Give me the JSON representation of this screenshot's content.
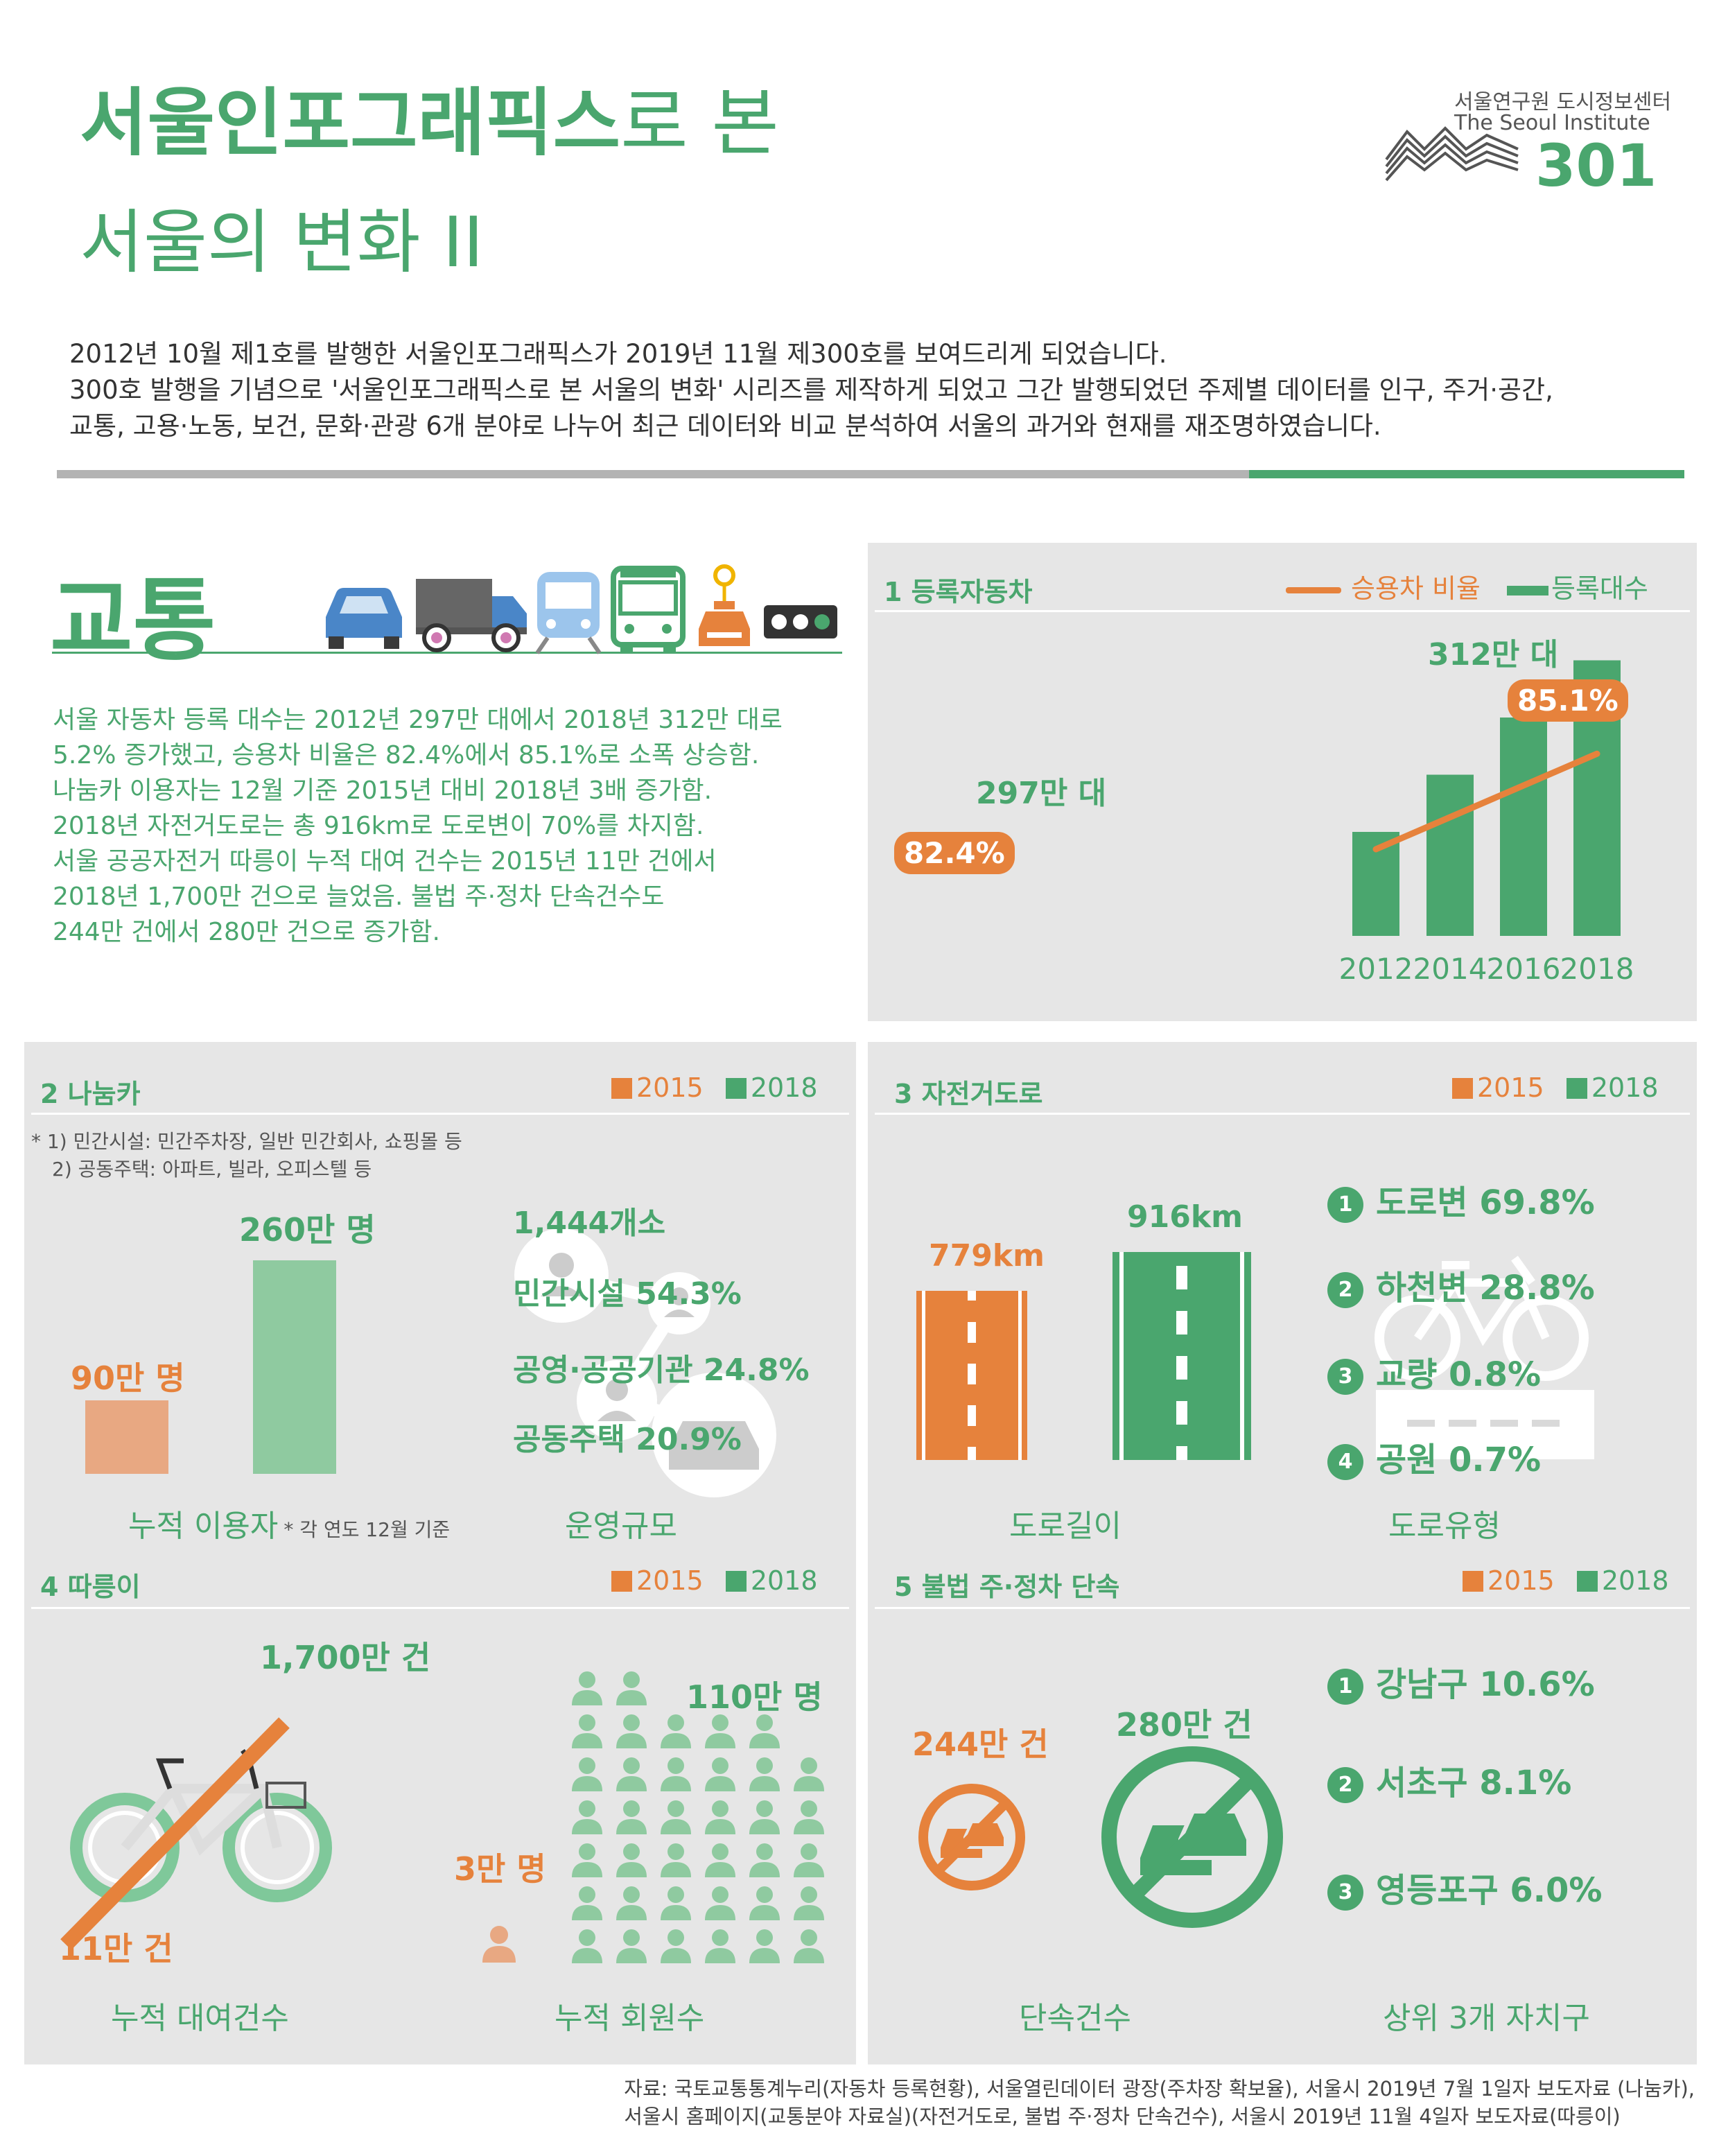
{
  "header": {
    "title_bold": "서울인포그래픽스",
    "title_rest": "로 본",
    "title_line2": "서울의 변화 II",
    "org": "서울연구원 도시정보센터",
    "org_en": "The Seoul Institute",
    "issue": "301"
  },
  "intro": [
    "2012년 10월 제1호를 발행한 서울인포그래픽스가 2019년 11월 제300호를 보여드리게 되었습니다.",
    "300호 발행을 기념으로 '서울인포그래픽스로 본 서울의 변화' 시리즈를 제작하게 되었고 그간 발행되었던 주제별 데이터를 인구, 주거·공간,",
    "교통, 고용·노동, 보건, 문화·관광 6개 분야로 나누어 최근 데이터와 비교 분석하여 서울의 과거와 현재를 재조명하였습니다."
  ],
  "section": {
    "title": "교통",
    "summary": [
      "서울 자동차 등록 대수는 2012년 297만 대에서 2018년 312만 대로",
      "5.2% 증가했고, 승용차 비율은 82.4%에서 85.1%로 소폭 상승함.",
      "나눔카 이용자는 12월 기준 2015년 대비 2018년 3배 증가함.",
      "2018년 자전거도로는 총 916km로 도로변이 70%를 차지함.",
      "서울 공공자전거 따릉이 누적 대여 건수는 2015년 11만 건에서",
      "2018년 1,700만 건으로 늘었음.  불법 주·정차 단속건수도",
      "244만 건에서 280만 건으로 증가함."
    ]
  },
  "colors": {
    "green": "#4aa66e",
    "orange": "#e6823c",
    "light_green": "#8fcaa0",
    "light_orange": "#e8a882",
    "panel": "#e6e6e6"
  },
  "legend": {
    "y2015": "2015",
    "y2018": "2018"
  },
  "panel1": {
    "title": "1  등록자동차",
    "legend_line": "승용차 비율",
    "legend_bar": "등록대수",
    "label_start": "297만 대",
    "label_end": "312만 대",
    "pct_start": "82.4%",
    "pct_end": "85.1%"
  },
  "chart_data": {
    "type": "bar",
    "categories": [
      "2012",
      "2014",
      "2016",
      "2018"
    ],
    "series": [
      {
        "name": "등록대수",
        "values": [
          297,
          302,
          307,
          312
        ]
      },
      {
        "name": "승용차 비율",
        "values": [
          82.4,
          83.3,
          84.2,
          85.1
        ]
      }
    ]
  },
  "panel2": {
    "title": "2  나눔카",
    "note1": "* 1) 민간시설: 민간주차장, 일반 민간회사, 쇼핑몰 등",
    "note2": "2) 공동주택: 아파트, 빌라, 오피스텔 등",
    "users_2015": "90만 명",
    "users_2018": "260만 명",
    "users_2015_value": 90,
    "users_2018_value": 260,
    "count": "1,444개소",
    "item1": "민간시설 54.3%",
    "item2": "공영·공공기관 24.8%",
    "item3": "공동주택 20.9%",
    "cap_users": "누적 이용자",
    "cap_users_note": "* 각 연도 12월 기준",
    "cap_scale": "운영규모"
  },
  "panel3": {
    "title": "3  자전거도로",
    "len_2015": "779km",
    "len_2018": "916km",
    "r1": "도로변 69.8%",
    "r2": "하천변 28.8%",
    "r3": "교량 0.8%",
    "r4": "공원 0.7%",
    "cap_len": "도로길이",
    "cap_type": "도로유형"
  },
  "panel4": {
    "title": "4  따릉이",
    "rent_2018": "1,700만 건",
    "rent_2015": "11만 건",
    "mem_2018": "110만 명",
    "mem_2015": "3만 명",
    "cap_rent": "누적 대여건수",
    "cap_mem": "누적 회원수"
  },
  "panel5": {
    "title": "5  불법 주·정차 단속",
    "c2015": "244만 건",
    "c2018": "280만 건",
    "r1": "강남구 10.6%",
    "r2": "서초구 8.1%",
    "r3": "영등포구 6.0%",
    "cap_count": "단속건수",
    "cap_top": "상위 3개 자치구"
  },
  "ranks": [
    "1",
    "2",
    "3",
    "4"
  ],
  "source": [
    "자료: 국토교통통계누리(자동차 등록현황), 서울열린데이터 광장(주차장 확보율),  서울시 2019년 7월 1일자 보도자료 (나눔카),",
    "서울시 홈페이지(교통분야 자료실)(자전거도로, 불법 주·정차 단속건수), 서울시 2019년 11월 4일자 보도자료(따릉이)"
  ]
}
